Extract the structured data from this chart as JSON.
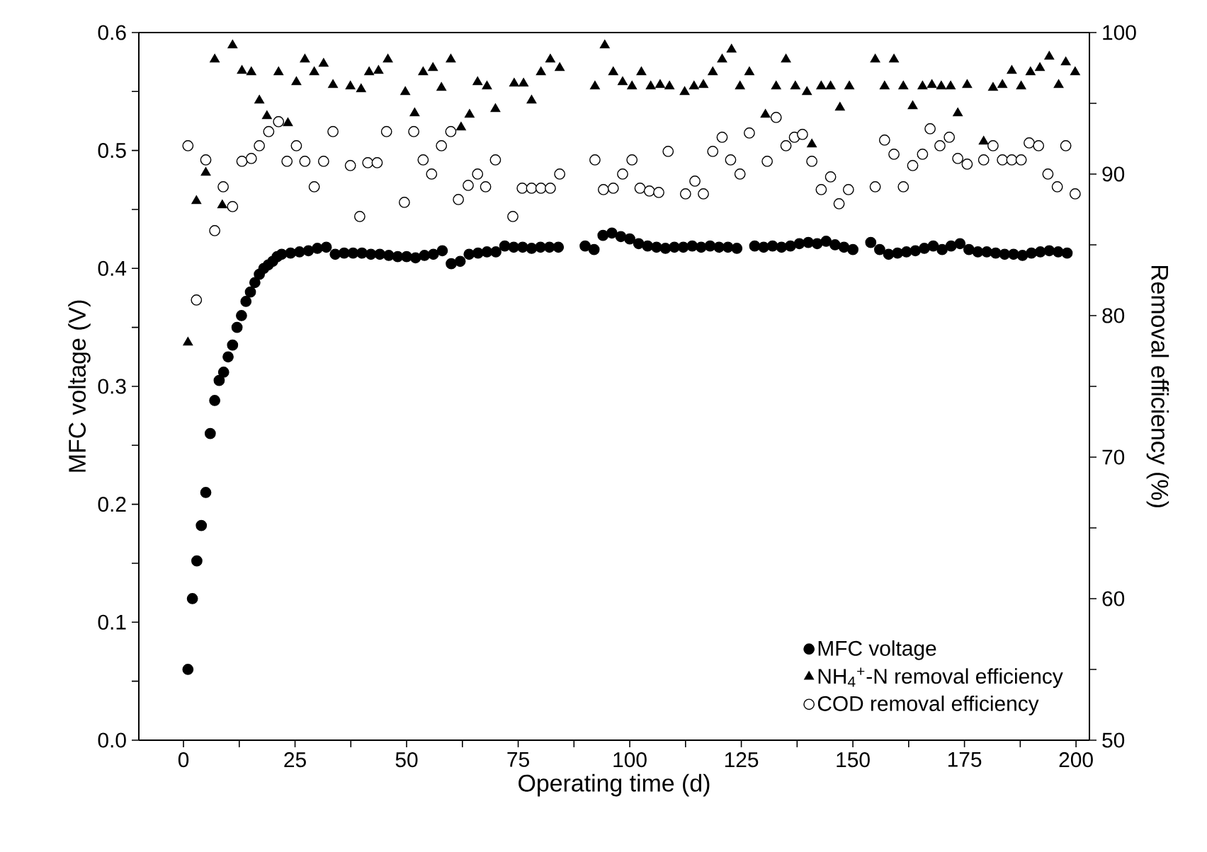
{
  "chart_data": {
    "type": "scatter",
    "xlabel": "Operating time (d)",
    "ylabel": "MFC voltage (V)",
    "y2label": "Removal efficiency (%)",
    "xlim": [
      -10,
      203
    ],
    "ylim": [
      0,
      0.6
    ],
    "y2lim": [
      50,
      100
    ],
    "xticks": [
      0,
      {
        "value": 12.5,
        "label": null
      },
      25,
      {
        "value": 37.5,
        "label": null
      },
      50,
      {
        "value": 62.5,
        "label": null
      },
      75,
      {
        "value": 87.5,
        "label": null
      },
      100,
      {
        "value": 112.5,
        "label": null
      },
      125,
      {
        "value": 137.5,
        "label": null
      },
      150,
      {
        "value": 162.5,
        "label": null
      },
      175,
      {
        "value": 187.5,
        "label": null
      },
      200
    ],
    "yticks": [
      {
        "value": 0,
        "label": "0.0"
      },
      {
        "value": 0.05,
        "label": null
      },
      0.1,
      {
        "value": 0.15,
        "label": null
      },
      0.2,
      {
        "value": 0.25,
        "label": null
      },
      0.3,
      {
        "value": 0.35,
        "label": null
      },
      0.4,
      {
        "value": 0.45,
        "label": null
      },
      0.5,
      {
        "value": 0.55,
        "label": null
      },
      0.6
    ],
    "y2ticks": [
      50,
      {
        "value": 55,
        "label": null
      },
      60,
      {
        "value": 65,
        "label": null
      },
      70,
      {
        "value": 75,
        "label": null
      },
      80,
      {
        "value": 85,
        "label": null
      },
      90,
      {
        "value": 95,
        "label": null
      },
      100
    ],
    "legend": "bottom right",
    "grid": false,
    "series": [
      {
        "name": "MFC voltage",
        "color": "#000000",
        "marker": "circle",
        "x": [
          1,
          2,
          3,
          4,
          5,
          6,
          7,
          8,
          9,
          10,
          11,
          12,
          13,
          14,
          15,
          16,
          17,
          18,
          19,
          20,
          21,
          22,
          24,
          26,
          28,
          30,
          32,
          34,
          36,
          38,
          40,
          42,
          44,
          46,
          48,
          50,
          52,
          54,
          56,
          58,
          60,
          62,
          64,
          66,
          68,
          70,
          72,
          74,
          76,
          78,
          80,
          82,
          84,
          90,
          92,
          94,
          96,
          98,
          100,
          102,
          104,
          106,
          108,
          110,
          112,
          114,
          116,
          118,
          120,
          122,
          124,
          128,
          130,
          132,
          134,
          136,
          138,
          140,
          142,
          144,
          146,
          148,
          150,
          154,
          156,
          158,
          160,
          162,
          164,
          166,
          168,
          170,
          172,
          174,
          176,
          178,
          180,
          182,
          184,
          186,
          188,
          190,
          192,
          194,
          196,
          198
        ],
        "values": [
          0.06,
          0.12,
          0.152,
          0.182,
          0.21,
          0.26,
          0.288,
          0.305,
          0.312,
          0.325,
          0.335,
          0.35,
          0.36,
          0.372,
          0.38,
          0.388,
          0.395,
          0.4,
          0.403,
          0.406,
          0.41,
          0.412,
          0.413,
          0.414,
          0.415,
          0.417,
          0.418,
          0.412,
          0.413,
          0.413,
          0.413,
          0.412,
          0.412,
          0.411,
          0.41,
          0.41,
          0.409,
          0.411,
          0.412,
          0.415,
          0.404,
          0.406,
          0.412,
          0.413,
          0.414,
          0.414,
          0.419,
          0.418,
          0.418,
          0.417,
          0.418,
          0.418,
          0.418,
          0.419,
          0.416,
          0.428,
          0.43,
          0.427,
          0.425,
          0.421,
          0.419,
          0.418,
          0.417,
          0.418,
          0.418,
          0.419,
          0.418,
          0.419,
          0.418,
          0.418,
          0.417,
          0.419,
          0.418,
          0.419,
          0.418,
          0.419,
          0.421,
          0.422,
          0.421,
          0.423,
          0.42,
          0.418,
          0.416,
          0.422,
          0.416,
          0.412,
          0.413,
          0.414,
          0.415,
          0.417,
          0.419,
          0.416,
          0.419,
          0.421,
          0.416,
          0.414,
          0.414,
          0.413,
          0.412,
          0.412,
          0.411,
          0.413,
          0.414,
          0.415,
          0.414,
          0.413
        ]
      },
      {
        "name": "NH$_{4}$$^{+}$-N removal efficiency",
        "color": "#000000",
        "marker": "triangle",
        "axis": "y2",
        "x": [
          1,
          2.9,
          5,
          7,
          8.7,
          11,
          13.1,
          15.2,
          17,
          18.7,
          21.3,
          23.4,
          25.3,
          27.2,
          29.3,
          31.4,
          33.5,
          37.4,
          39.8,
          41.6,
          43.7,
          45.8,
          49.7,
          51.8,
          53.7,
          55.9,
          57.8,
          59.9,
          62.2,
          64.1,
          65.9,
          68,
          69.9,
          74.1,
          76.2,
          78,
          80.1,
          82.2,
          84.3,
          92.2,
          94.4,
          96.3,
          98.4,
          100.5,
          102.6,
          104.7,
          106.8,
          108.9,
          112.3,
          114.4,
          116.5,
          118.6,
          120.7,
          122.8,
          124.7,
          126.8,
          130.4,
          132.8,
          135,
          137.1,
          139.7,
          140.8,
          142.9,
          145,
          147.1,
          149.2,
          155,
          157.1,
          159.2,
          161.3,
          163.4,
          165.6,
          167.7,
          169.8,
          171.9,
          173.5,
          175.6,
          179.3,
          181.4,
          183.5,
          185.6,
          187.7,
          189.8,
          191.9,
          194,
          196.1,
          197.7,
          199.8
        ],
        "values": [
          78.1,
          88.1,
          90.1,
          98.1,
          87.8,
          99.1,
          97.3,
          97.2,
          95.2,
          94.1,
          97.2,
          93.6,
          96.5,
          98.1,
          97.2,
          97.8,
          96.3,
          96.2,
          96.0,
          97.2,
          97.3,
          98.1,
          95.8,
          94.3,
          97.2,
          97.5,
          96.1,
          98.1,
          93.3,
          94.2,
          96.5,
          96.2,
          94.6,
          96.4,
          96.4,
          95.2,
          97.2,
          98.1,
          97.5,
          96.2,
          99.1,
          97.2,
          96.5,
          96.2,
          97.2,
          96.2,
          96.3,
          96.2,
          95.8,
          96.2,
          96.3,
          97.2,
          98.1,
          98.8,
          96.2,
          97.2,
          94.2,
          96.2,
          98.1,
          96.2,
          95.8,
          92.1,
          96.2,
          96.2,
          94.7,
          96.2,
          98.1,
          96.2,
          98.1,
          96.2,
          94.8,
          96.2,
          96.3,
          96.2,
          96.2,
          94.3,
          96.3,
          92.3,
          96.1,
          96.3,
          97.3,
          96.2,
          97.2,
          97.5,
          98.3,
          96.3,
          97.9,
          97.2
        ]
      },
      {
        "name": "COD removal efficiency",
        "color": "#000000",
        "marker": "circle",
        "axis": "y2",
        "x": [
          1,
          2.9,
          5,
          7,
          8.9,
          11,
          13.1,
          15.2,
          17,
          19.1,
          21.3,
          23.2,
          25.3,
          27.2,
          29.3,
          31.4,
          33.5,
          37.4,
          39.5,
          41.3,
          43.4,
          45.5,
          49.5,
          51.6,
          53.7,
          55.6,
          57.8,
          59.9,
          61.6,
          63.8,
          65.9,
          67.7,
          69.9,
          73.8,
          75.9,
          78,
          80.1,
          82.2,
          84.3,
          92.2,
          94.1,
          96.3,
          98.4,
          100.5,
          102.3,
          104.4,
          106.5,
          108.6,
          112.5,
          114.6,
          116.5,
          118.6,
          120.7,
          122.6,
          124.7,
          126.8,
          130.8,
          132.8,
          135,
          136.9,
          138.7,
          140.8,
          142.9,
          145,
          146.9,
          149,
          155,
          157.1,
          159.2,
          161.3,
          163.4,
          165.6,
          167.3,
          169.5,
          171.6,
          173.5,
          175.6,
          179.3,
          181.4,
          183.5,
          185.6,
          187.7,
          189.5,
          191.6,
          193.7,
          195.8,
          197.7,
          199.8
        ],
        "values": [
          92.0,
          81.1,
          91.0,
          86.0,
          89.1,
          87.7,
          90.9,
          91.1,
          92.0,
          93.0,
          93.7,
          90.9,
          92.0,
          90.9,
          89.1,
          90.9,
          93.0,
          90.6,
          87.0,
          90.8,
          90.8,
          93.0,
          88.0,
          93.0,
          91.0,
          90.0,
          92.0,
          93.0,
          88.2,
          89.2,
          90.0,
          89.1,
          91.0,
          87.0,
          89.0,
          89.0,
          89.0,
          89.0,
          90.0,
          91.0,
          88.9,
          89.0,
          90.0,
          91.0,
          89.0,
          88.8,
          88.7,
          91.6,
          88.6,
          89.5,
          88.6,
          91.6,
          92.6,
          91.0,
          90.0,
          92.9,
          90.9,
          94.0,
          92.0,
          92.6,
          92.8,
          90.9,
          88.9,
          89.8,
          87.9,
          88.9,
          89.1,
          92.4,
          91.4,
          89.1,
          90.6,
          91.4,
          93.2,
          92.0,
          92.6,
          91.1,
          90.7,
          91.0,
          92.0,
          91.0,
          91.0,
          91.0,
          92.2,
          92.0,
          90.0,
          89.1,
          92.0,
          88.6
        ]
      }
    ]
  }
}
